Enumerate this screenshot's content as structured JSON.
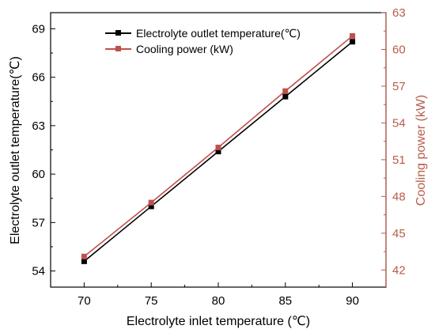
{
  "chart_data": {
    "type": "line",
    "xlabel": "Electrolyte inlet temperature (℃)",
    "ylabel_left": "Electrolyte outlet temperature(℃)",
    "ylabel_right": "Cooling power (kW)",
    "x": [
      70,
      75,
      80,
      85,
      90
    ],
    "xlim": [
      67.5,
      92.5
    ],
    "xticks": [
      70,
      75,
      80,
      85,
      90
    ],
    "ylim_left": [
      53,
      70
    ],
    "yticks_left": [
      54,
      57,
      60,
      63,
      66,
      69
    ],
    "ylim_right": [
      40.6,
      63
    ],
    "yticks_right": [
      42,
      45,
      48,
      51,
      54,
      57,
      60,
      63
    ],
    "grid": false,
    "legend_position": "top",
    "series": [
      {
        "name": "Electrolyte outlet temperature(℃)",
        "axis": "left",
        "color": "#000000",
        "marker": "square",
        "values": [
          54.6,
          58.0,
          61.4,
          64.8,
          68.2
        ]
      },
      {
        "name": "Cooling power (kW)",
        "axis": "right",
        "color": "#c0504d",
        "marker": "square",
        "values": [
          43.1,
          47.5,
          52.0,
          56.6,
          61.1
        ]
      }
    ]
  },
  "colors": {
    "right_axis": "#b85c4a",
    "left_axis": "#000000"
  }
}
